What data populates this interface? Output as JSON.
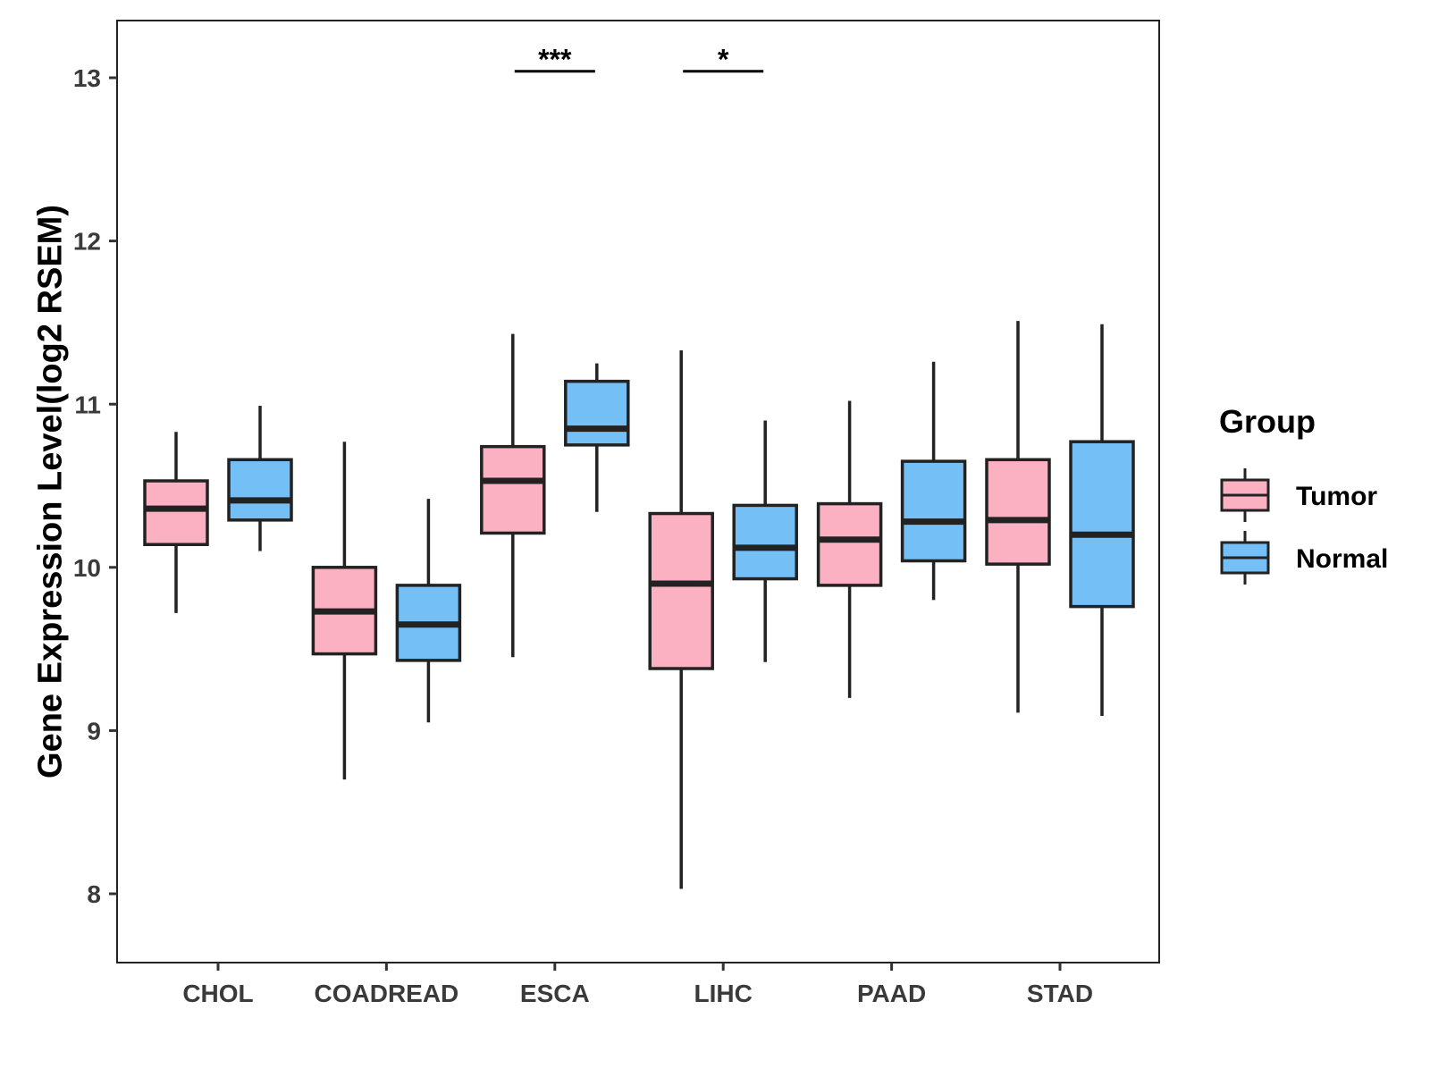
{
  "chart_data": {
    "type": "boxplot",
    "title": "",
    "xlabel": "",
    "ylabel": "Gene Expression Level(log2 RSEM)",
    "ylim": [
      7.55,
      13.33
    ],
    "yticks": [
      8,
      9,
      10,
      11,
      12,
      13
    ],
    "categories": [
      "CHOL",
      "COADREAD",
      "ESCA",
      "LIHC",
      "PAAD",
      "STAD"
    ],
    "legend": {
      "title": "Group",
      "position": "right",
      "entries": [
        {
          "name": "Tumor",
          "color": "#FBB1C1"
        },
        {
          "name": "Normal",
          "color": "#75BFF7"
        }
      ]
    },
    "series": [
      {
        "name": "Tumor",
        "color": "#FBB1C1",
        "boxes": [
          {
            "category": "CHOL",
            "min": 9.72,
            "q1": 10.14,
            "median": 10.36,
            "q3": 10.53,
            "max": 10.83
          },
          {
            "category": "COADREAD",
            "min": 8.7,
            "q1": 9.47,
            "median": 9.73,
            "q3": 10.0,
            "max": 10.77
          },
          {
            "category": "ESCA",
            "min": 9.45,
            "q1": 10.21,
            "median": 10.53,
            "q3": 10.74,
            "max": 11.43
          },
          {
            "category": "LIHC",
            "min": 8.03,
            "q1": 9.38,
            "median": 9.9,
            "q3": 10.33,
            "max": 11.33
          },
          {
            "category": "PAAD",
            "min": 9.2,
            "q1": 9.89,
            "median": 10.17,
            "q3": 10.39,
            "max": 11.02
          },
          {
            "category": "STAD",
            "min": 9.11,
            "q1": 10.02,
            "median": 10.29,
            "q3": 10.66,
            "max": 11.51
          }
        ]
      },
      {
        "name": "Normal",
        "color": "#75BFF7",
        "boxes": [
          {
            "category": "CHOL",
            "min": 10.1,
            "q1": 10.29,
            "median": 10.41,
            "q3": 10.66,
            "max": 10.99
          },
          {
            "category": "COADREAD",
            "min": 9.05,
            "q1": 9.43,
            "median": 9.65,
            "q3": 9.89,
            "max": 10.42
          },
          {
            "category": "ESCA",
            "min": 10.34,
            "q1": 10.75,
            "median": 10.85,
            "q3": 11.14,
            "max": 11.25
          },
          {
            "category": "LIHC",
            "min": 9.42,
            "q1": 9.93,
            "median": 10.12,
            "q3": 10.38,
            "max": 10.9
          },
          {
            "category": "PAAD",
            "min": 9.8,
            "q1": 10.04,
            "median": 10.28,
            "q3": 10.65,
            "max": 11.26
          },
          {
            "category": "STAD",
            "min": 9.09,
            "q1": 9.76,
            "median": 10.2,
            "q3": 10.77,
            "max": 11.49
          }
        ]
      }
    ],
    "annotations": [
      {
        "category": "ESCA",
        "label": "***",
        "y": 13.04
      },
      {
        "category": "LIHC",
        "label": "*",
        "y": 13.04
      }
    ]
  }
}
